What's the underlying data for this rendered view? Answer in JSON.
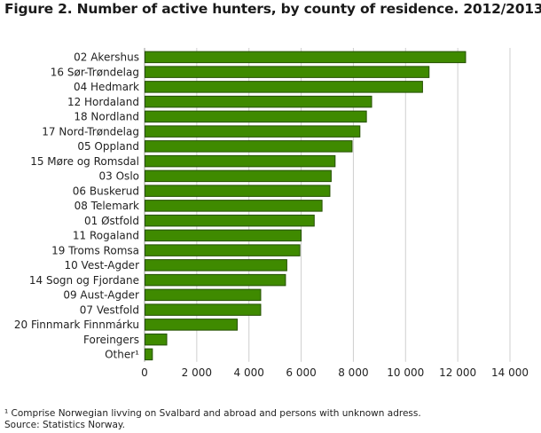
{
  "chart_data": {
    "type": "bar",
    "orientation": "horizontal",
    "title": "Figure 2. Number of active hunters, by county of residence. 2012/2013",
    "categories": [
      "02 Akershus",
      "16 Sør-Trøndelag",
      "04 Hedmark",
      "12 Hordaland",
      "18 Nordland",
      "17 Nord-Trøndelag",
      "05 Oppland",
      "15 Møre og Romsdal",
      "03 Oslo",
      "06 Buskerud",
      "08 Telemark",
      "01 Østfold",
      "11 Rogaland",
      "19 Troms Romsa",
      "10 Vest-Agder",
      "14 Sogn og Fjordane",
      "09 Aust-Agder",
      "07 Vestfold",
      "20 Finnmark Finnmárku",
      "Foreingers",
      "Other¹"
    ],
    "values": [
      12300,
      10900,
      10650,
      8700,
      8500,
      8250,
      7950,
      7300,
      7150,
      7100,
      6800,
      6500,
      6000,
      5950,
      5450,
      5400,
      4450,
      4450,
      3550,
      850,
      300
    ],
    "xlim": [
      0,
      14000
    ],
    "xticks": [
      0,
      2000,
      4000,
      6000,
      8000,
      10000,
      12000,
      14000
    ],
    "xtick_labels": [
      "0",
      "2 000",
      "4 000",
      "6 000",
      "8 000",
      "10 000",
      "12 000",
      "14 000"
    ],
    "xlabel": "",
    "ylabel": "",
    "grid": true,
    "legend": "none",
    "bar_color": "#3f8a00",
    "bar_border_color": "#244f00",
    "grid_color": "#cfcfcf"
  },
  "footnote": "¹ Comprise Norwegian livving on Svalbard and abroad and persons with unknown adress.",
  "source": "Source: Statistics Norway."
}
